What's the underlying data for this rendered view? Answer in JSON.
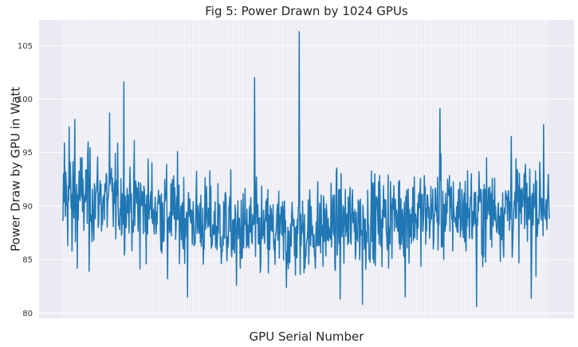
{
  "chart_data": {
    "type": "line",
    "title": "Fig 5: Power Drawn by 1024 GPUs",
    "xlabel": "GPU Serial Number",
    "ylabel": "Power Draw by GPU in Watt",
    "x_tick_labels_shown": false,
    "grid": true,
    "x_range": [
      0,
      1023
    ],
    "ylim": [
      79.5,
      107.4
    ],
    "y_ticks": [
      80,
      85,
      90,
      95,
      100,
      105
    ],
    "y_tick_labels": [
      "80",
      "85",
      "90",
      "95",
      "100",
      "105"
    ],
    "series": [
      {
        "count": 1024,
        "color": "#1f77b4",
        "key_points": [
          {
            "x": 0,
            "y": 88.6
          },
          {
            "x": 3,
            "y": 95.9
          },
          {
            "x": 10,
            "y": 86.3
          },
          {
            "x": 13,
            "y": 97.4
          },
          {
            "x": 19,
            "y": 85.8
          },
          {
            "x": 25,
            "y": 98.1
          },
          {
            "x": 30,
            "y": 84.2
          },
          {
            "x": 52,
            "y": 94.8
          },
          {
            "x": 55,
            "y": 83.9
          },
          {
            "x": 98,
            "y": 98.7
          },
          {
            "x": 128,
            "y": 101.6
          },
          {
            "x": 162,
            "y": 84.1
          },
          {
            "x": 220,
            "y": 83.2
          },
          {
            "x": 262,
            "y": 81.5
          },
          {
            "x": 365,
            "y": 82.6
          },
          {
            "x": 403,
            "y": 102.0
          },
          {
            "x": 470,
            "y": 82.4
          },
          {
            "x": 497,
            "y": 106.3
          },
          {
            "x": 583,
            "y": 81.3
          },
          {
            "x": 630,
            "y": 80.8
          },
          {
            "x": 720,
            "y": 81.5
          },
          {
            "x": 793,
            "y": 99.1
          },
          {
            "x": 870,
            "y": 80.6
          },
          {
            "x": 943,
            "y": 96.5
          },
          {
            "x": 985,
            "y": 81.4
          },
          {
            "x": 1011,
            "y": 97.6
          },
          {
            "x": 1023,
            "y": 88.8
          }
        ]
      }
    ]
  }
}
